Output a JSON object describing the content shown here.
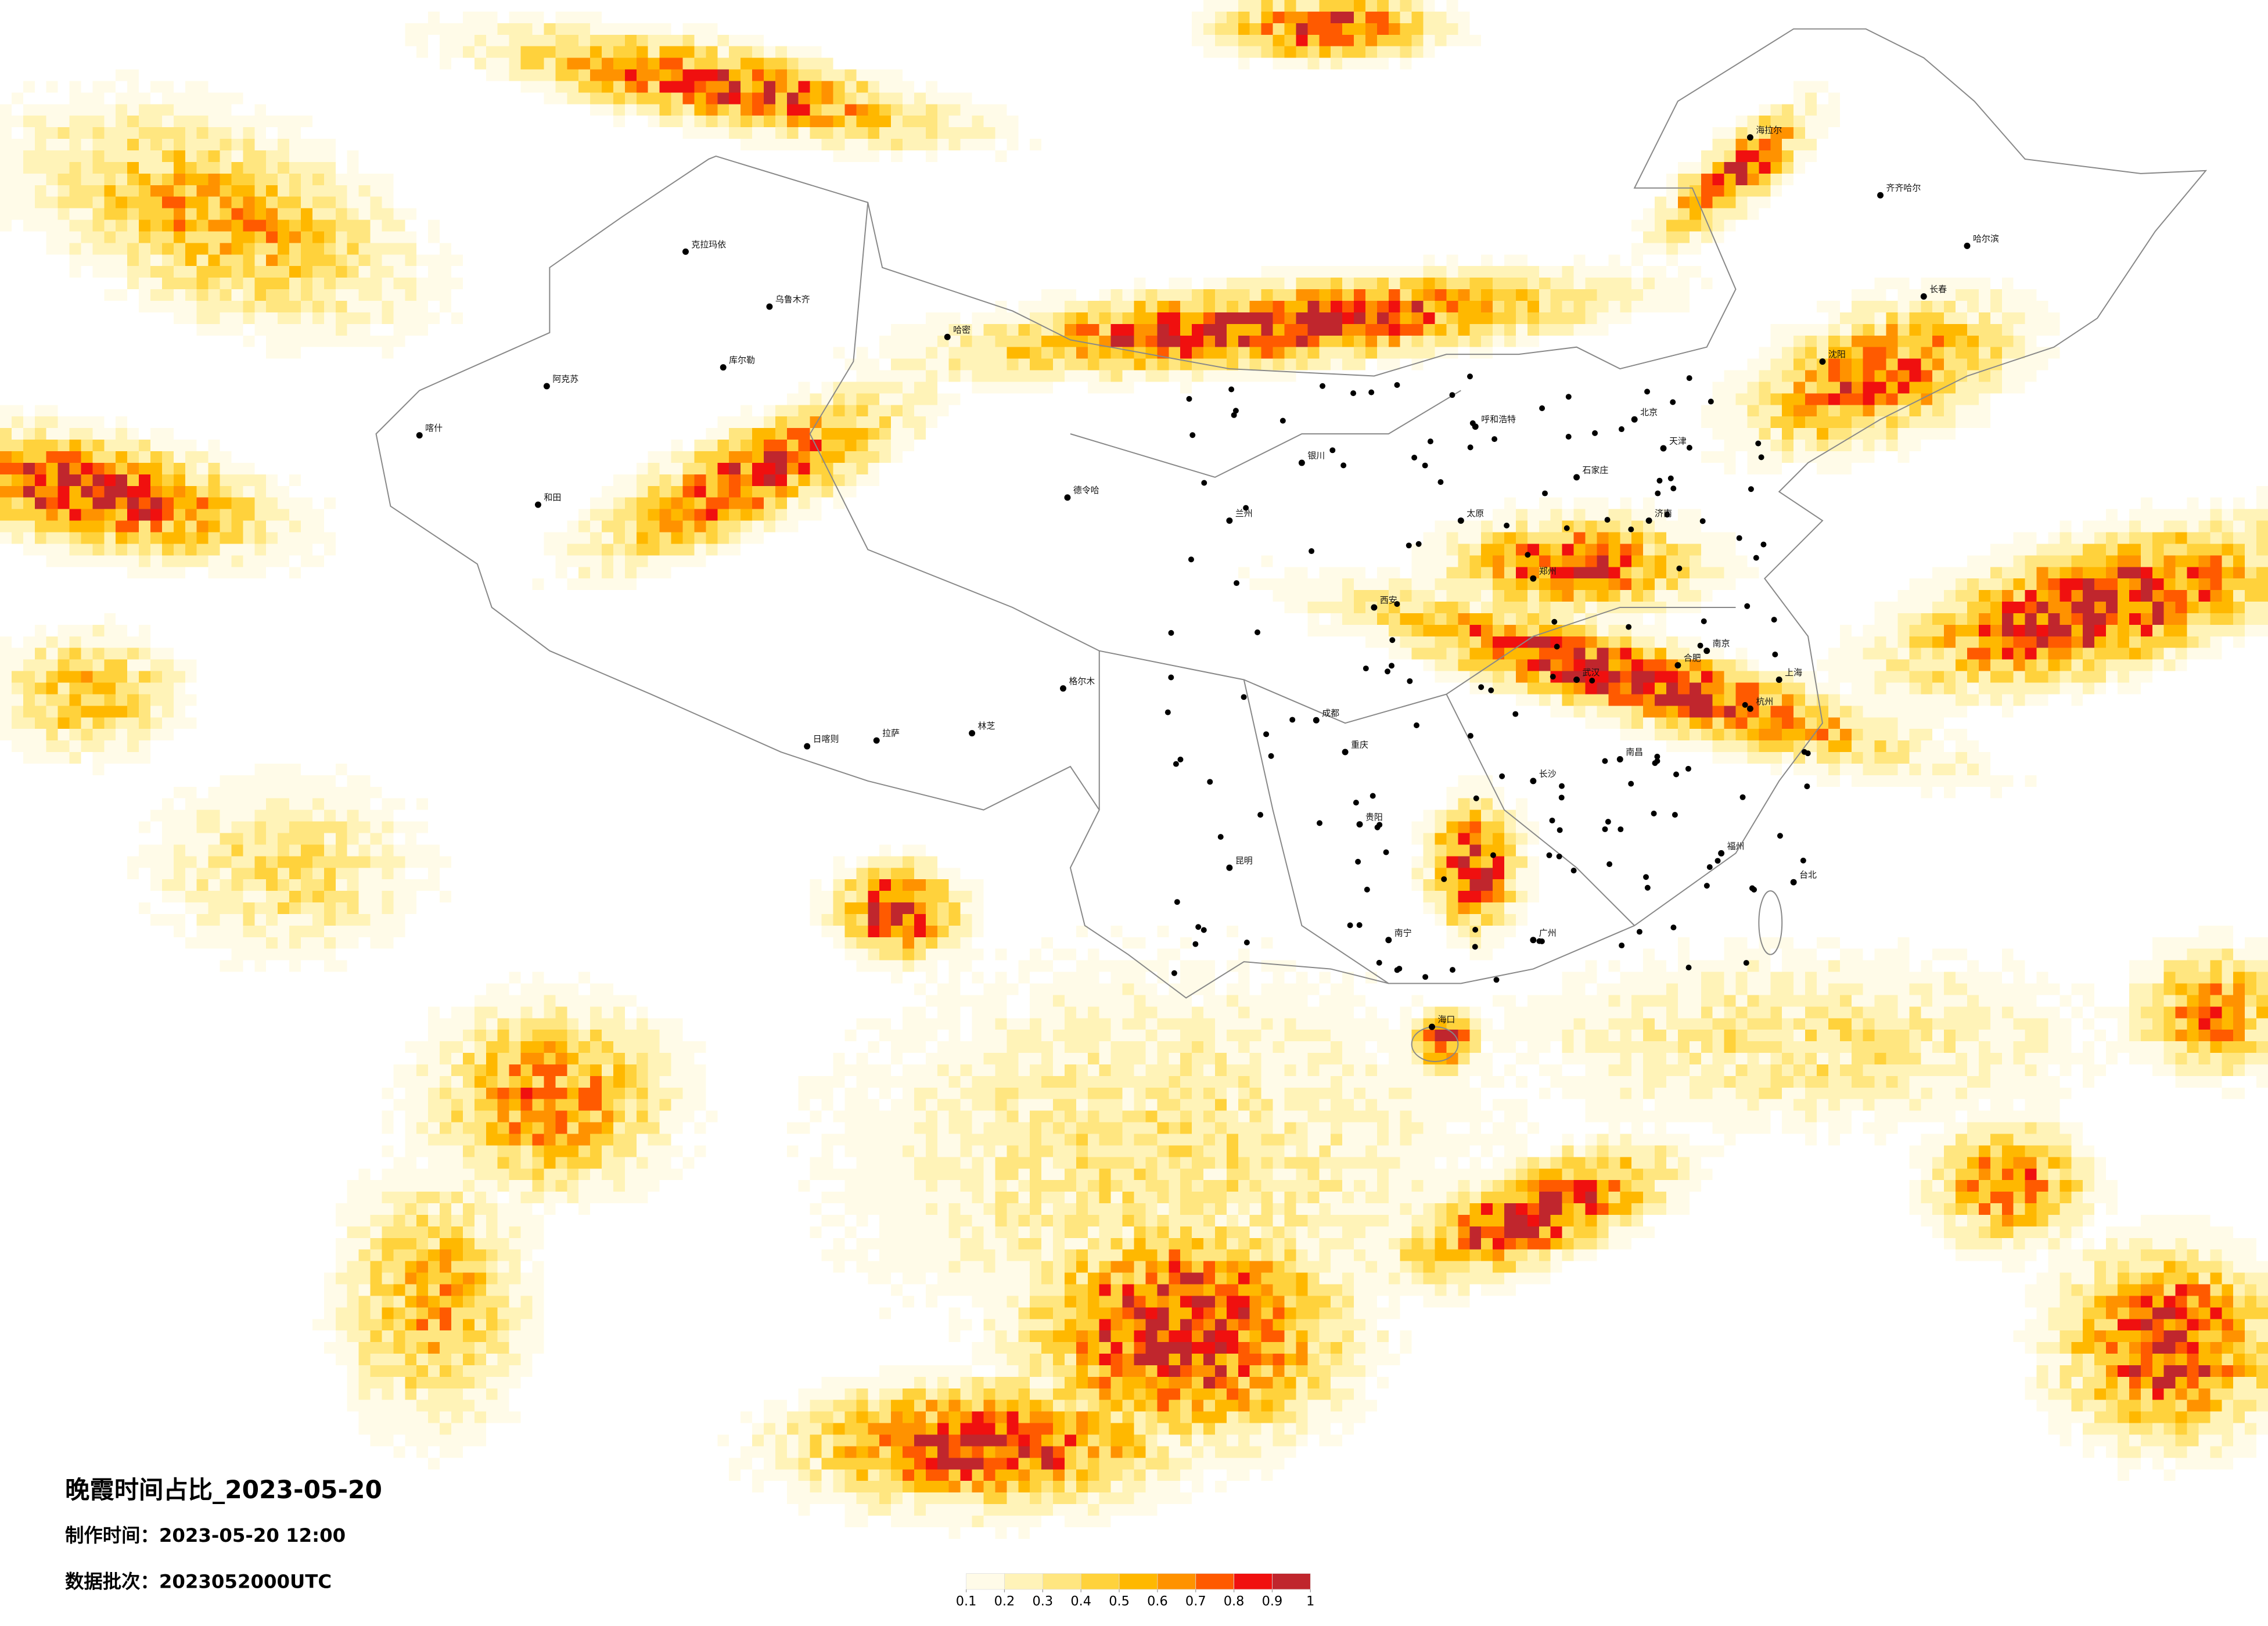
{
  "title": "晚霞时间占比_2023-05-20",
  "made_time": "制作时间：2023-05-20 12:00",
  "data_batch": "数据批次：2023052000UTC",
  "colorbar": {
    "ticks": [
      0.1,
      0.2,
      0.3,
      0.4,
      0.5,
      0.6,
      0.7,
      0.8,
      0.9,
      1
    ],
    "colors": [
      "#fffbe8",
      "#fff3b8",
      "#ffe680",
      "#ffd23c",
      "#ffb800",
      "#ff9200",
      "#ff5a00",
      "#f0100f",
      "#c0262d"
    ]
  },
  "cities": [
    "克拉玛依",
    "乌鲁木齐",
    "哈密",
    "库尔勒",
    "阿克苏",
    "喀什",
    "和田",
    "德令哈",
    "格尔木",
    "拉萨",
    "日喀则",
    "林芝",
    "成都",
    "重庆",
    "昆明",
    "贵阳",
    "南宁",
    "广州",
    "海口",
    "台北",
    "福州",
    "南昌",
    "长沙",
    "武汉",
    "南京",
    "上海",
    "杭州",
    "合肥",
    "郑州",
    "西安",
    "兰州",
    "银川",
    "太原",
    "石家庄",
    "北京",
    "天津",
    "济南",
    "沈阳",
    "长春",
    "哈尔滨",
    "呼和浩特",
    "齐齐哈尔",
    "海拉尔"
  ]
}
